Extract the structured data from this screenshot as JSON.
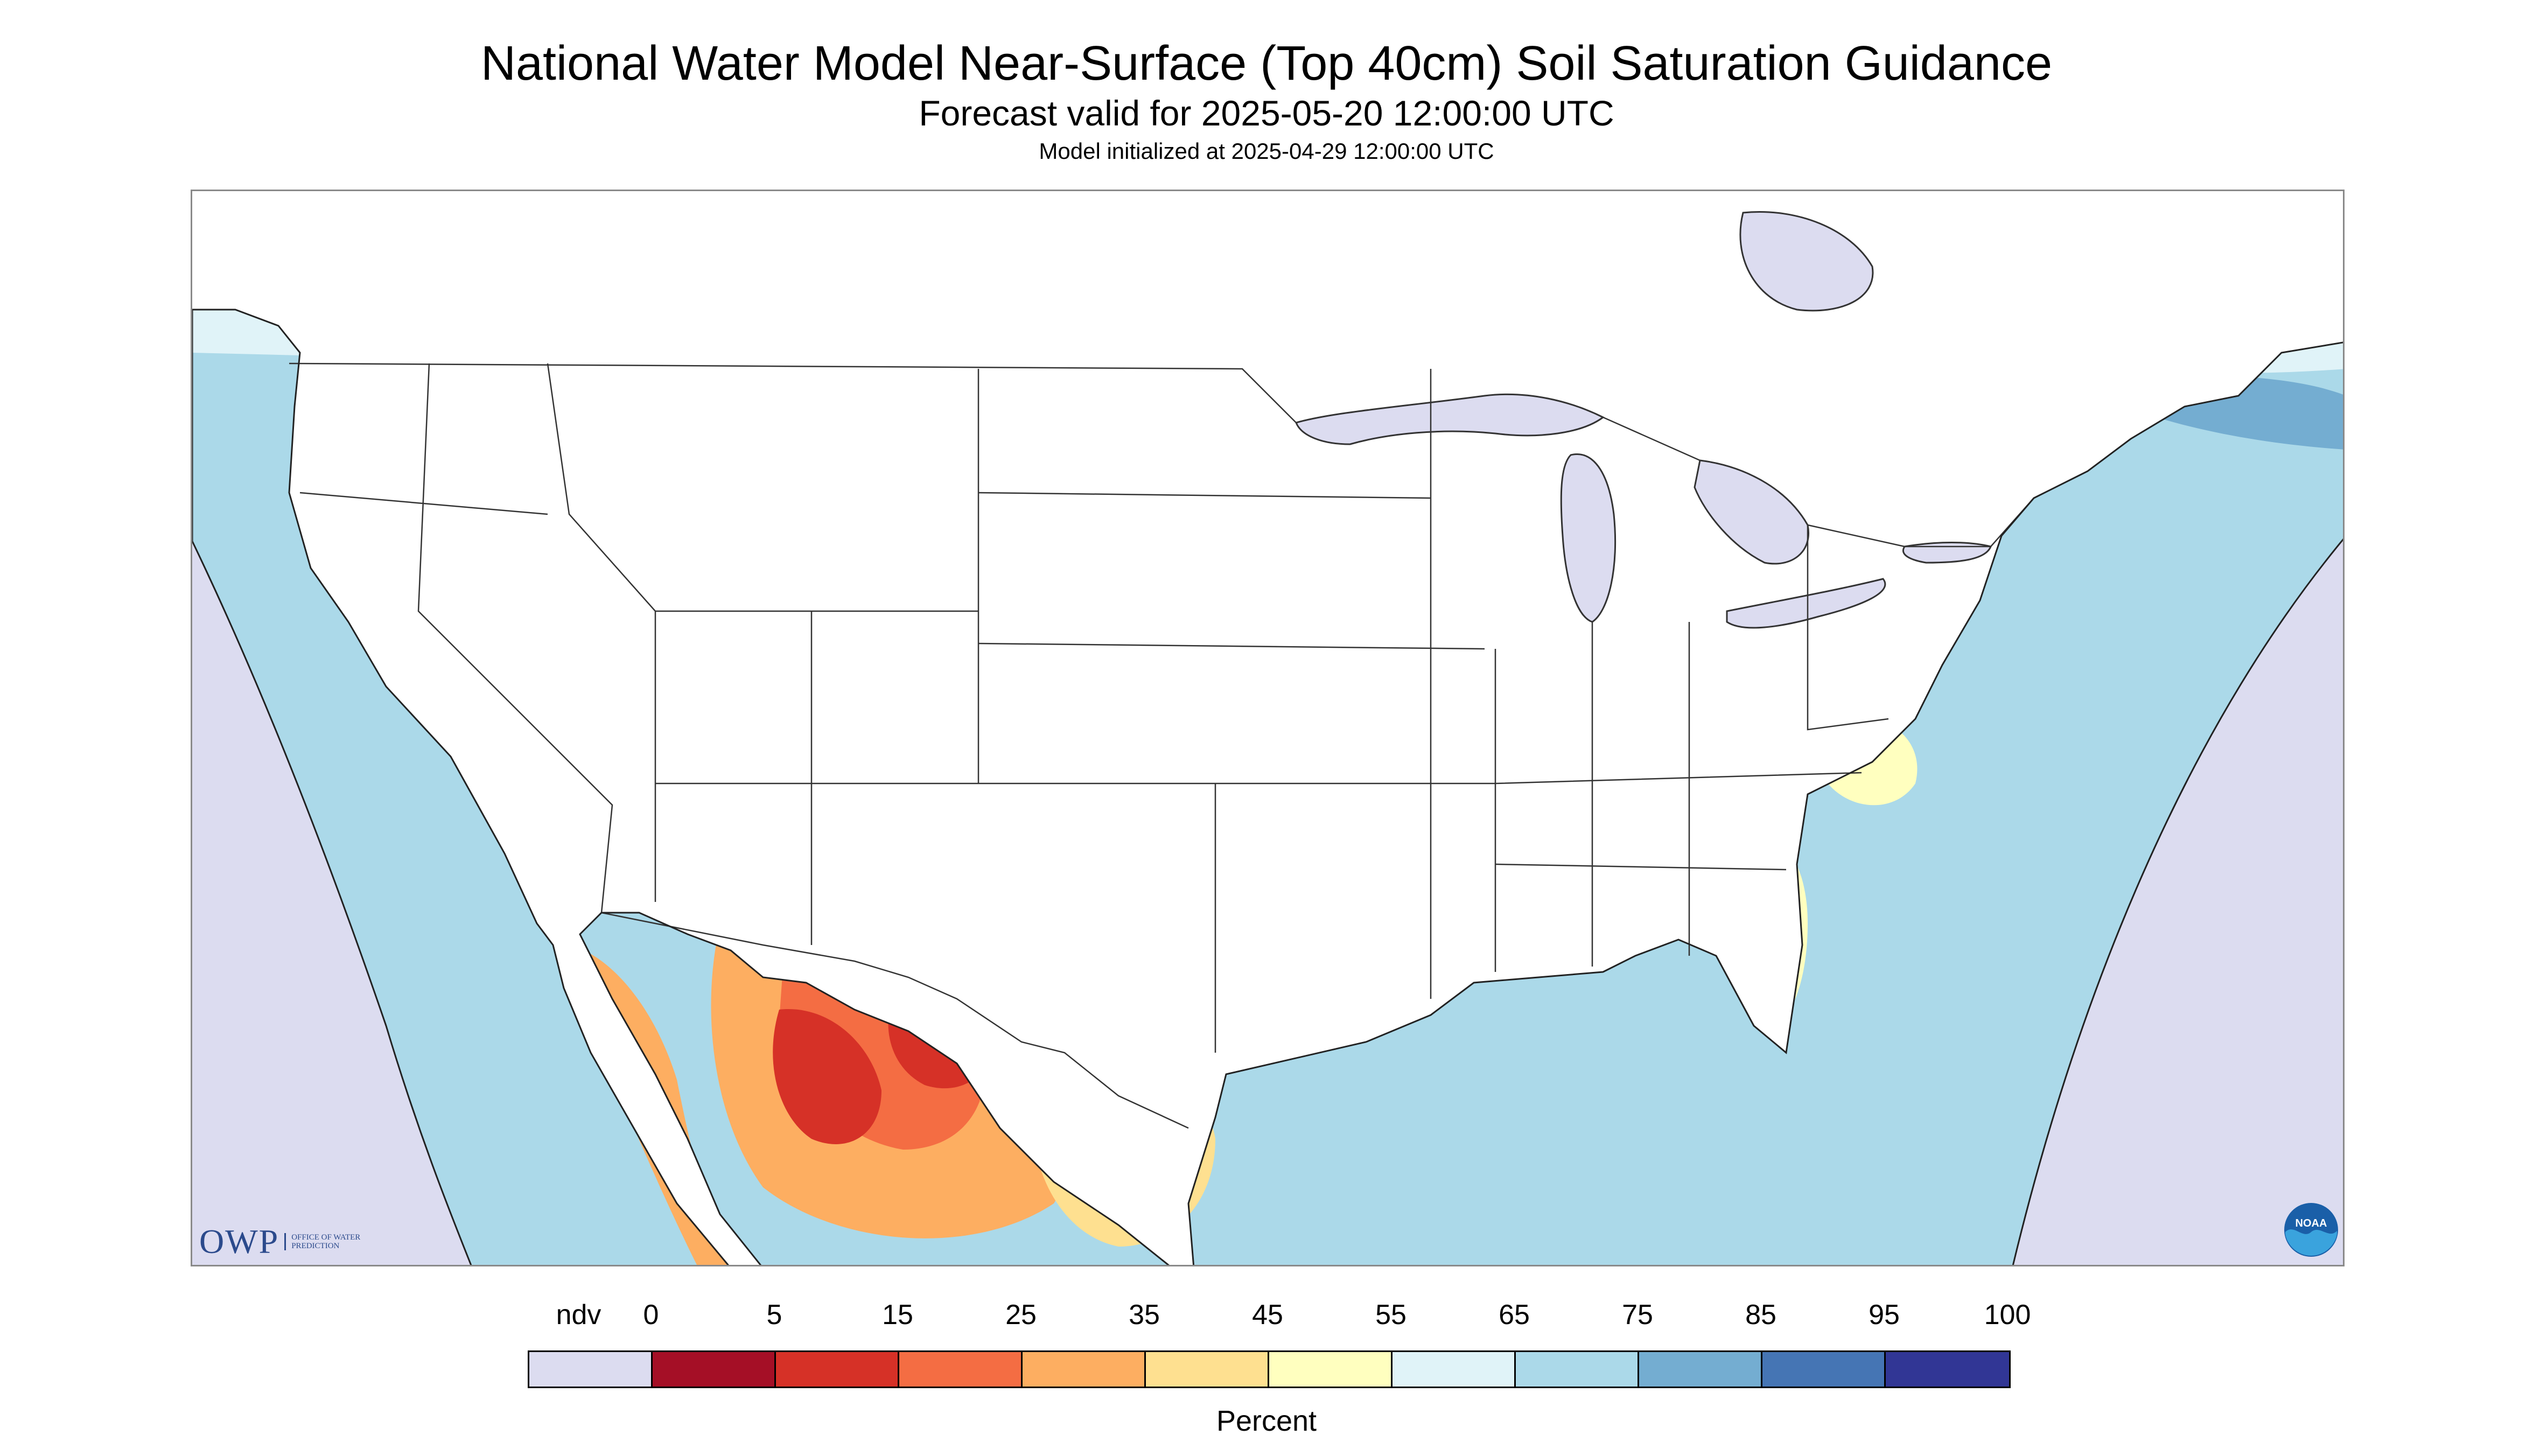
{
  "header": {
    "title": "National Water Model Near-Surface (Top 40cm) Soil Saturation Guidance",
    "subtitle": "Forecast valid for 2025-05-20 12:00:00 UTC",
    "init_line": "Model initialized at 2025-04-29 12:00:00 UTC"
  },
  "logos": {
    "owp_text": "OWP",
    "owp_sub": "OFFICE OF WATER PREDICTION",
    "noaa_text": "NOAA"
  },
  "legend": {
    "labels": [
      "ndv",
      "0",
      "5",
      "15",
      "25",
      "35",
      "45",
      "55",
      "65",
      "75",
      "85",
      "95",
      "100"
    ],
    "colors": [
      "#dcdcf0",
      "#a50f26",
      "#d63127",
      "#f46d43",
      "#fdae61",
      "#fee090",
      "#ffffbf",
      "#e0f3f8",
      "#abd9e9",
      "#74add1",
      "#4575b4",
      "#313695"
    ],
    "units": "Percent"
  },
  "map_colors": {
    "no_data": "#dcdcf0",
    "water": "#dcdcf0",
    "land_base": "#abd9e9",
    "border": "#333333"
  }
}
